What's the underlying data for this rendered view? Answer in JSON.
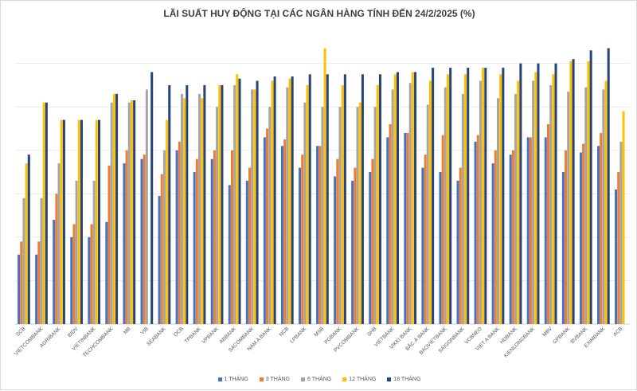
{
  "chart_data": {
    "type": "bar",
    "title": "LÃI SUẤT HUY ĐỘNG TẠI CÁC NGÂN HÀNG TÍNH ĐẾN 24/2/2025 (%)",
    "xlabel": "",
    "ylabel": "",
    "ylim": [
      0,
      6.8
    ],
    "grid": true,
    "legend_position": "bottom",
    "categories": [
      "SCB",
      "VIETCOMBANK",
      "AGRIBANK",
      "BIDV",
      "VIETINBANK",
      "TECHCOMBANK",
      "MB",
      "VIB",
      "SEABANK",
      "OCB",
      "TPBANK",
      "VPBANK",
      "ABBANK",
      "SACOMBANK",
      "NAM A BANK",
      "NCB",
      "LPBANK",
      "MSB",
      "PGBANK",
      "PVCOMBANK",
      "SHB",
      "VIETBANK",
      "VIKKI BANK",
      "BẮC Á BANK",
      "BAOVIETBANK",
      "SAIGONBANK",
      "VCBNEO",
      "VIET A BANK",
      "HDBANK",
      "KIENLONGBANK",
      "MBV",
      "GPBANK",
      "BVBANK",
      "EXIMBANK",
      "ACB"
    ],
    "series": [
      {
        "name": "1 THÁNG",
        "color": "#4472c4",
        "values": [
          1.6,
          1.6,
          2.4,
          2.0,
          2.0,
          2.35,
          3.7,
          3.8,
          2.95,
          4.0,
          3.5,
          3.8,
          3.2,
          3.3,
          4.3,
          4.1,
          3.6,
          4.1,
          3.4,
          3.3,
          3.5,
          4.3,
          4.4,
          3.6,
          3.5,
          3.3,
          4.2,
          3.7,
          3.9,
          4.3,
          4.3,
          3.5,
          3.95,
          4.1,
          3.1
        ]
      },
      {
        "name": "3 THÁNG",
        "color": "#ed7d31",
        "values": [
          1.9,
          1.9,
          3.0,
          2.3,
          2.3,
          3.65,
          4.0,
          3.9,
          3.45,
          4.2,
          3.8,
          4.0,
          4.0,
          3.6,
          4.5,
          4.25,
          3.9,
          4.1,
          3.8,
          3.6,
          3.8,
          4.6,
          4.4,
          3.9,
          4.35,
          3.6,
          4.35,
          4.0,
          4.0,
          4.3,
          4.6,
          4.0,
          4.15,
          4.4,
          3.5
        ]
      },
      {
        "name": "6 THÁNG",
        "color": "#a5a5a5",
        "values": [
          2.9,
          2.9,
          3.7,
          3.3,
          3.3,
          5.1,
          5.1,
          5.4,
          4.0,
          5.3,
          5.3,
          5.0,
          5.5,
          5.4,
          5.0,
          5.45,
          5.1,
          5.0,
          5.0,
          5.0,
          5.0,
          5.4,
          5.55,
          5.05,
          5.45,
          5.3,
          5.6,
          5.2,
          5.3,
          5.6,
          5.5,
          5.35,
          5.45,
          5.4,
          4.2
        ]
      },
      {
        "name": "12 THÁNG",
        "color": "#ffc000",
        "values": [
          3.7,
          5.1,
          4.7,
          4.7,
          4.7,
          5.3,
          5.15,
          0,
          4.7,
          5.2,
          5.2,
          5.5,
          5.75,
          5.4,
          5.6,
          5.65,
          5.5,
          6.35,
          5.5,
          5.1,
          5.5,
          5.75,
          5.8,
          5.6,
          5.75,
          5.75,
          5.9,
          5.75,
          5.6,
          5.8,
          5.75,
          6.05,
          6.05,
          5.6,
          4.9
        ]
      },
      {
        "name": "18 THÁNG",
        "color": "#264478",
        "values": [
          3.9,
          5.1,
          4.7,
          4.7,
          4.7,
          5.3,
          5.15,
          5.8,
          5.5,
          5.5,
          5.5,
          5.5,
          5.65,
          5.6,
          5.7,
          5.7,
          5.75,
          5.75,
          5.75,
          5.75,
          5.75,
          5.8,
          5.8,
          5.9,
          5.9,
          5.9,
          5.9,
          5.9,
          6.0,
          6.0,
          6.0,
          6.1,
          6.3,
          6.35,
          0
        ]
      }
    ]
  }
}
